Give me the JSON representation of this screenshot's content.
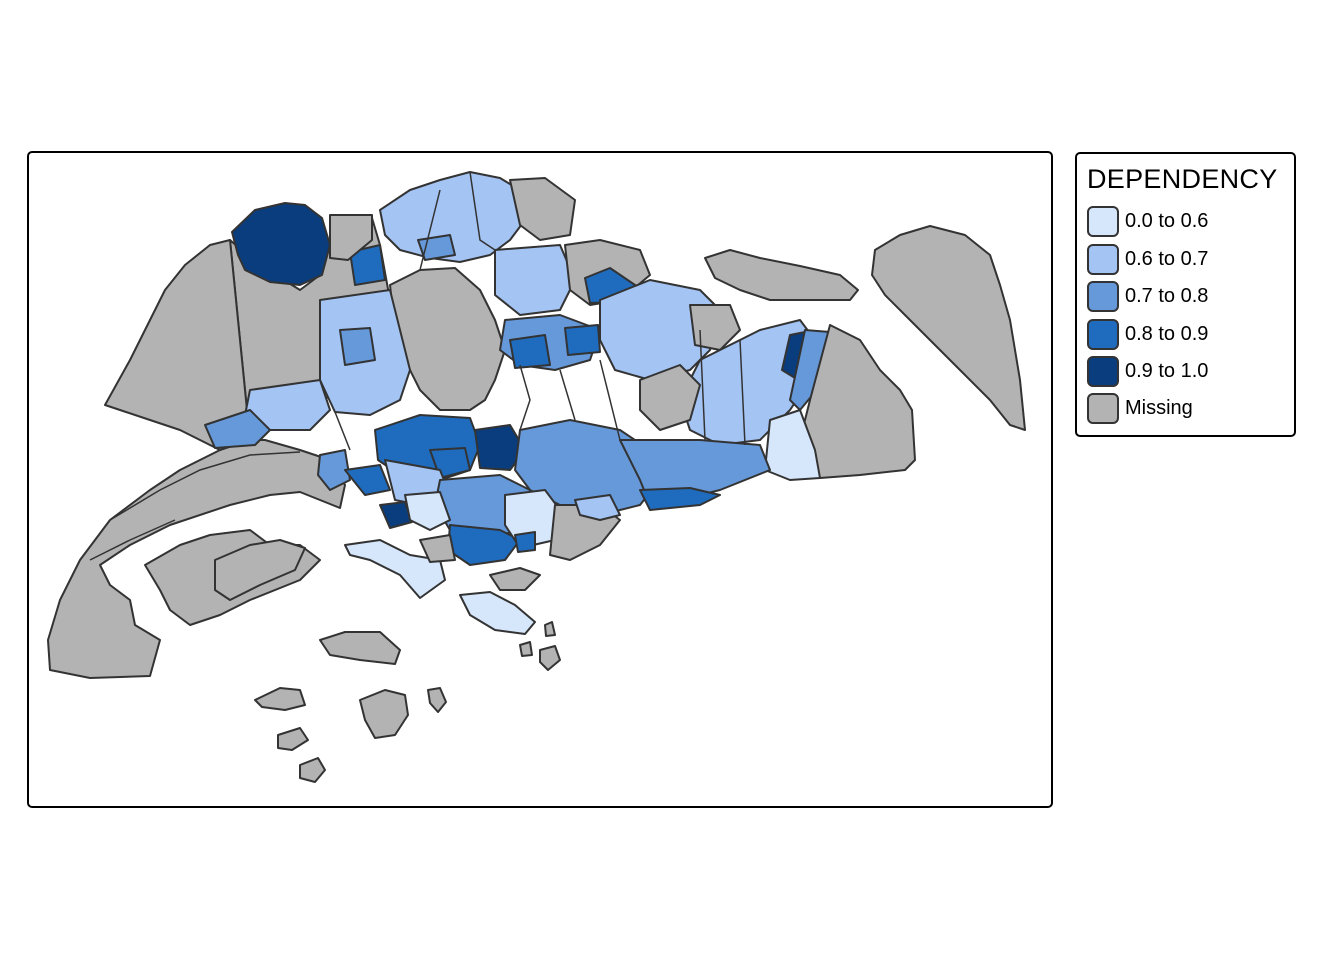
{
  "legend": {
    "title": "DEPENDENCY",
    "items": [
      {
        "label": "0.0 to 0.6",
        "color": "#d6e6fb"
      },
      {
        "label": "0.6 to 0.7",
        "color": "#a4c4f4"
      },
      {
        "label": "0.7 to 0.8",
        "color": "#6699d9"
      },
      {
        "label": "0.8 to 0.9",
        "color": "#1f6cbf"
      },
      {
        "label": "0.9 to 1.0",
        "color": "#0a3d7d"
      },
      {
        "label": "Missing",
        "color": "#b3b3b3"
      }
    ]
  },
  "colors": {
    "border": "#333333",
    "frame": "#000000",
    "missing": "#b3b3b3"
  }
}
